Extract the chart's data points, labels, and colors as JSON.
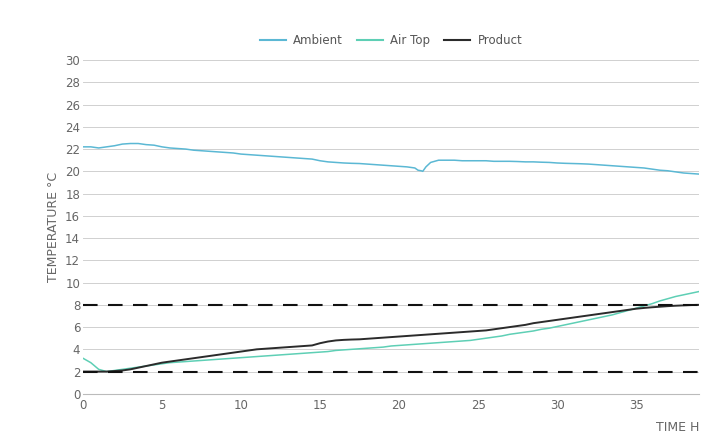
{
  "title": "",
  "xlabel": "TIME H",
  "ylabel": "TEMPERATURE °C",
  "xlim": [
    0,
    39
  ],
  "ylim": [
    0,
    30
  ],
  "xticks": [
    0,
    5,
    10,
    15,
    20,
    25,
    30,
    35
  ],
  "yticks": [
    0,
    2,
    4,
    6,
    8,
    10,
    12,
    14,
    16,
    18,
    20,
    22,
    24,
    26,
    28,
    30
  ],
  "hline_lower": 2,
  "hline_upper": 8,
  "ambient_color": "#5bb8d4",
  "airtop_color": "#5ecfb5",
  "product_color": "#2b2b2b",
  "bg_color": "#ffffff",
  "grid_color": "#d0d0d0",
  "legend_labels": [
    "Ambient",
    "Air Top",
    "Product"
  ],
  "ambient_data": [
    [
      0.0,
      22.2
    ],
    [
      0.5,
      22.2
    ],
    [
      1.0,
      22.1
    ],
    [
      1.5,
      22.2
    ],
    [
      2.0,
      22.3
    ],
    [
      2.5,
      22.45
    ],
    [
      3.0,
      22.5
    ],
    [
      3.5,
      22.5
    ],
    [
      4.0,
      22.4
    ],
    [
      4.5,
      22.35
    ],
    [
      5.0,
      22.2
    ],
    [
      5.5,
      22.1
    ],
    [
      6.0,
      22.05
    ],
    [
      6.5,
      22.0
    ],
    [
      7.0,
      21.9
    ],
    [
      7.5,
      21.85
    ],
    [
      8.0,
      21.8
    ],
    [
      8.5,
      21.75
    ],
    [
      9.0,
      21.7
    ],
    [
      9.5,
      21.65
    ],
    [
      10.0,
      21.55
    ],
    [
      10.5,
      21.5
    ],
    [
      11.0,
      21.45
    ],
    [
      11.5,
      21.4
    ],
    [
      12.0,
      21.35
    ],
    [
      12.5,
      21.3
    ],
    [
      13.0,
      21.25
    ],
    [
      13.5,
      21.2
    ],
    [
      14.0,
      21.15
    ],
    [
      14.5,
      21.1
    ],
    [
      15.0,
      20.95
    ],
    [
      15.5,
      20.85
    ],
    [
      16.0,
      20.8
    ],
    [
      16.5,
      20.75
    ],
    [
      17.0,
      20.72
    ],
    [
      17.5,
      20.7
    ],
    [
      18.0,
      20.65
    ],
    [
      18.5,
      20.6
    ],
    [
      19.0,
      20.55
    ],
    [
      19.5,
      20.5
    ],
    [
      20.0,
      20.45
    ],
    [
      20.5,
      20.4
    ],
    [
      21.0,
      20.3
    ],
    [
      21.2,
      20.1
    ],
    [
      21.4,
      20.05
    ],
    [
      21.5,
      20.0
    ],
    [
      21.7,
      20.4
    ],
    [
      22.0,
      20.8
    ],
    [
      22.5,
      21.0
    ],
    [
      23.0,
      21.0
    ],
    [
      23.5,
      21.0
    ],
    [
      24.0,
      20.95
    ],
    [
      24.5,
      20.95
    ],
    [
      25.0,
      20.95
    ],
    [
      25.5,
      20.95
    ],
    [
      26.0,
      20.9
    ],
    [
      26.5,
      20.9
    ],
    [
      27.0,
      20.9
    ],
    [
      27.5,
      20.88
    ],
    [
      28.0,
      20.85
    ],
    [
      28.5,
      20.85
    ],
    [
      29.0,
      20.82
    ],
    [
      29.5,
      20.8
    ],
    [
      30.0,
      20.75
    ],
    [
      30.5,
      20.72
    ],
    [
      31.0,
      20.7
    ],
    [
      31.5,
      20.68
    ],
    [
      32.0,
      20.65
    ],
    [
      32.5,
      20.6
    ],
    [
      33.0,
      20.55
    ],
    [
      33.5,
      20.5
    ],
    [
      34.0,
      20.45
    ],
    [
      34.5,
      20.4
    ],
    [
      35.0,
      20.35
    ],
    [
      35.5,
      20.3
    ],
    [
      36.0,
      20.2
    ],
    [
      36.5,
      20.1
    ],
    [
      37.0,
      20.05
    ],
    [
      37.5,
      19.95
    ],
    [
      38.0,
      19.85
    ],
    [
      38.5,
      19.8
    ],
    [
      39.0,
      19.75
    ]
  ],
  "airtop_data": [
    [
      0.0,
      3.2
    ],
    [
      0.5,
      2.8
    ],
    [
      1.0,
      2.2
    ],
    [
      1.5,
      2.0
    ],
    [
      2.0,
      2.1
    ],
    [
      2.5,
      2.2
    ],
    [
      3.0,
      2.3
    ],
    [
      3.5,
      2.4
    ],
    [
      4.0,
      2.5
    ],
    [
      4.5,
      2.6
    ],
    [
      5.0,
      2.7
    ],
    [
      5.5,
      2.8
    ],
    [
      6.0,
      2.85
    ],
    [
      6.5,
      2.9
    ],
    [
      7.0,
      2.95
    ],
    [
      7.5,
      3.0
    ],
    [
      8.0,
      3.05
    ],
    [
      8.5,
      3.1
    ],
    [
      9.0,
      3.15
    ],
    [
      9.5,
      3.2
    ],
    [
      10.0,
      3.25
    ],
    [
      10.5,
      3.3
    ],
    [
      11.0,
      3.35
    ],
    [
      11.5,
      3.4
    ],
    [
      12.0,
      3.45
    ],
    [
      12.5,
      3.5
    ],
    [
      13.0,
      3.55
    ],
    [
      13.5,
      3.6
    ],
    [
      14.0,
      3.65
    ],
    [
      14.5,
      3.7
    ],
    [
      15.0,
      3.75
    ],
    [
      15.5,
      3.8
    ],
    [
      16.0,
      3.9
    ],
    [
      16.5,
      3.95
    ],
    [
      17.0,
      4.0
    ],
    [
      17.5,
      4.05
    ],
    [
      18.0,
      4.1
    ],
    [
      18.5,
      4.15
    ],
    [
      19.0,
      4.2
    ],
    [
      19.5,
      4.3
    ],
    [
      20.0,
      4.35
    ],
    [
      20.5,
      4.4
    ],
    [
      21.0,
      4.45
    ],
    [
      21.5,
      4.5
    ],
    [
      22.0,
      4.55
    ],
    [
      22.5,
      4.6
    ],
    [
      23.0,
      4.65
    ],
    [
      23.5,
      4.7
    ],
    [
      24.0,
      4.75
    ],
    [
      24.5,
      4.8
    ],
    [
      25.0,
      4.9
    ],
    [
      25.5,
      5.0
    ],
    [
      26.0,
      5.1
    ],
    [
      26.5,
      5.2
    ],
    [
      27.0,
      5.35
    ],
    [
      27.5,
      5.45
    ],
    [
      28.0,
      5.55
    ],
    [
      28.5,
      5.65
    ],
    [
      29.0,
      5.8
    ],
    [
      29.5,
      5.9
    ],
    [
      30.0,
      6.05
    ],
    [
      30.5,
      6.2
    ],
    [
      31.0,
      6.35
    ],
    [
      31.5,
      6.5
    ],
    [
      32.0,
      6.65
    ],
    [
      32.5,
      6.8
    ],
    [
      33.0,
      6.95
    ],
    [
      33.5,
      7.1
    ],
    [
      34.0,
      7.3
    ],
    [
      34.5,
      7.5
    ],
    [
      35.0,
      7.7
    ],
    [
      35.5,
      7.9
    ],
    [
      36.0,
      8.1
    ],
    [
      36.5,
      8.35
    ],
    [
      37.0,
      8.55
    ],
    [
      37.5,
      8.75
    ],
    [
      38.0,
      8.9
    ],
    [
      38.5,
      9.05
    ],
    [
      39.0,
      9.2
    ]
  ],
  "product_data": [
    [
      0.0,
      2.0
    ],
    [
      0.5,
      2.0
    ],
    [
      1.0,
      2.0
    ],
    [
      1.5,
      2.0
    ],
    [
      2.0,
      2.05
    ],
    [
      2.5,
      2.1
    ],
    [
      3.0,
      2.2
    ],
    [
      3.5,
      2.35
    ],
    [
      4.0,
      2.5
    ],
    [
      4.5,
      2.65
    ],
    [
      5.0,
      2.8
    ],
    [
      5.5,
      2.9
    ],
    [
      6.0,
      3.0
    ],
    [
      6.5,
      3.1
    ],
    [
      7.0,
      3.2
    ],
    [
      7.5,
      3.3
    ],
    [
      8.0,
      3.4
    ],
    [
      8.5,
      3.5
    ],
    [
      9.0,
      3.6
    ],
    [
      9.5,
      3.7
    ],
    [
      10.0,
      3.8
    ],
    [
      10.5,
      3.9
    ],
    [
      11.0,
      4.0
    ],
    [
      11.5,
      4.05
    ],
    [
      12.0,
      4.1
    ],
    [
      12.5,
      4.15
    ],
    [
      13.0,
      4.2
    ],
    [
      13.5,
      4.25
    ],
    [
      14.0,
      4.3
    ],
    [
      14.5,
      4.35
    ],
    [
      15.0,
      4.55
    ],
    [
      15.5,
      4.7
    ],
    [
      16.0,
      4.8
    ],
    [
      16.5,
      4.85
    ],
    [
      17.0,
      4.88
    ],
    [
      17.5,
      4.9
    ],
    [
      18.0,
      4.95
    ],
    [
      18.5,
      5.0
    ],
    [
      19.0,
      5.05
    ],
    [
      19.5,
      5.1
    ],
    [
      20.0,
      5.15
    ],
    [
      20.5,
      5.2
    ],
    [
      21.0,
      5.25
    ],
    [
      21.5,
      5.3
    ],
    [
      22.0,
      5.35
    ],
    [
      22.5,
      5.4
    ],
    [
      23.0,
      5.45
    ],
    [
      23.5,
      5.5
    ],
    [
      24.0,
      5.55
    ],
    [
      24.5,
      5.6
    ],
    [
      25.0,
      5.65
    ],
    [
      25.5,
      5.7
    ],
    [
      26.0,
      5.8
    ],
    [
      26.5,
      5.9
    ],
    [
      27.0,
      6.0
    ],
    [
      27.5,
      6.1
    ],
    [
      28.0,
      6.2
    ],
    [
      28.5,
      6.35
    ],
    [
      29.0,
      6.45
    ],
    [
      29.5,
      6.55
    ],
    [
      30.0,
      6.65
    ],
    [
      30.5,
      6.75
    ],
    [
      31.0,
      6.85
    ],
    [
      31.5,
      6.95
    ],
    [
      32.0,
      7.05
    ],
    [
      32.5,
      7.15
    ],
    [
      33.0,
      7.25
    ],
    [
      33.5,
      7.35
    ],
    [
      34.0,
      7.45
    ],
    [
      34.5,
      7.55
    ],
    [
      35.0,
      7.65
    ],
    [
      35.5,
      7.72
    ],
    [
      36.0,
      7.78
    ],
    [
      36.5,
      7.83
    ],
    [
      37.0,
      7.88
    ],
    [
      37.5,
      7.92
    ],
    [
      38.0,
      7.95
    ],
    [
      38.5,
      7.98
    ],
    [
      39.0,
      8.0
    ]
  ]
}
